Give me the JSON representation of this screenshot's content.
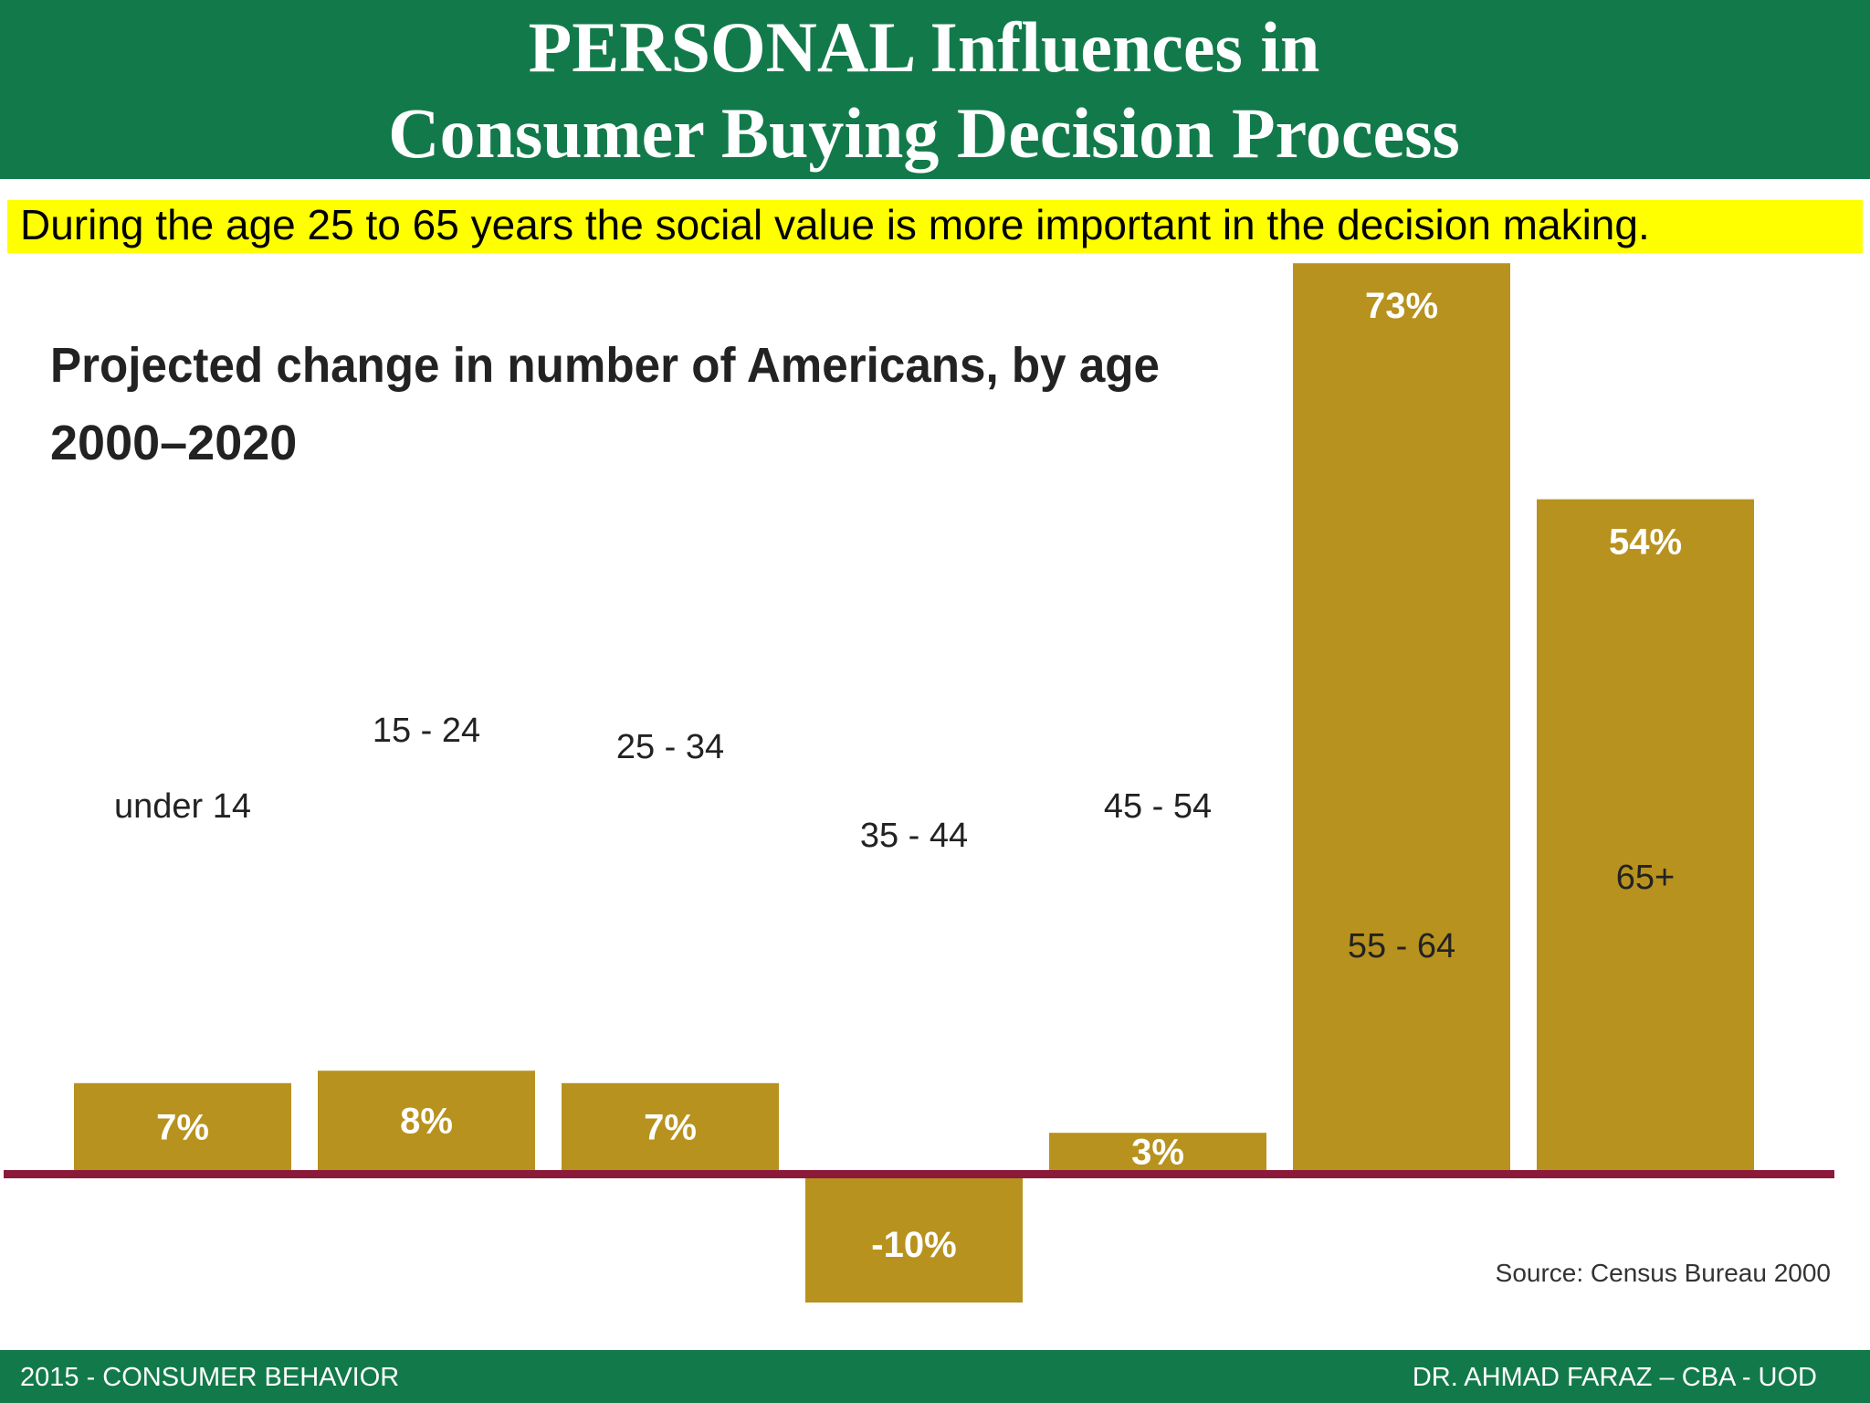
{
  "header": {
    "title_line1": "PERSONAL Influences in",
    "title_line2": "Consumer Buying Decision Process"
  },
  "note": "During the age 25 to 65 years the social value is more important in the decision making.",
  "chart_data": {
    "type": "bar",
    "title": "Projected change in number of Americans, by age",
    "subtitle": "2000–2020",
    "categories": [
      "under 14",
      "15 - 24",
      "25 - 34",
      "35 - 44",
      "45 - 54",
      "55 - 64",
      "65+"
    ],
    "values": [
      7,
      8,
      7,
      -10,
      3,
      73,
      54
    ],
    "value_labels": [
      "7%",
      "8%",
      "7%",
      "-10%",
      "3%",
      "73%",
      "54%"
    ],
    "color": "#b8921e",
    "source": "Source: Census Bureau 2000"
  },
  "footer": {
    "left": "2015  - CONSUMER BEHAVIOR",
    "right": "DR. AHMAD FARAZ – CBA - UOD"
  }
}
